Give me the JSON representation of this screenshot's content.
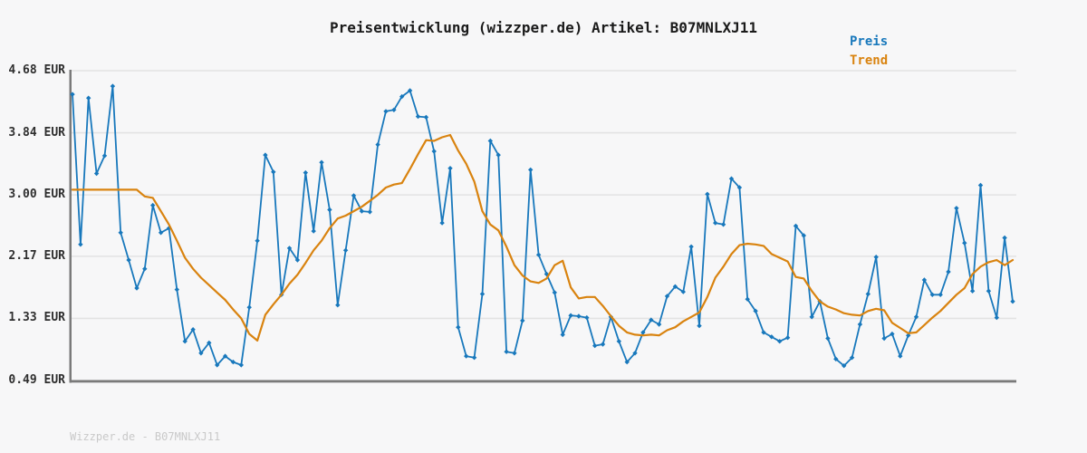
{
  "title": "Preisentwicklung (wizzper.de) Artikel: B07MNLXJ11",
  "watermark": "Wizzper.de - B07MNLXJ11",
  "legend": {
    "preis": "Preis",
    "trend": "Trend"
  },
  "colors": {
    "preis": "#1878bc",
    "trend": "#d9830f",
    "grid": "#e3e3e3",
    "spine": "#7a7a7a",
    "background": "#f7f7f8",
    "title_text": "#1a1a1a",
    "tick_text": "#2e2e2e",
    "watermark_text": "#c9c9c9"
  },
  "chart_data": {
    "type": "line",
    "title": "Preisentwicklung (wizzper.de) Artikel: B07MNLXJ11",
    "xlabel": "",
    "ylabel": "EUR",
    "ylim": [
      0.49,
      4.68
    ],
    "grid": true,
    "legend_position": "top-right above plot",
    "x_tick_labels": [],
    "y_ticks": [
      {
        "label": "4.68 EUR",
        "value": 4.68
      },
      {
        "label": "3.84 EUR",
        "value": 3.84
      },
      {
        "label": "3.00 EUR",
        "value": 3.0
      },
      {
        "label": "2.17 EUR",
        "value": 2.17
      },
      {
        "label": "1.33 EUR",
        "value": 1.33
      },
      {
        "label": "0.49 EUR",
        "value": 0.49
      }
    ],
    "series": [
      {
        "name": "Preis",
        "color": "#1878bc",
        "marker": "diamond",
        "values": [
          4.36,
          2.33,
          4.31,
          3.29,
          3.53,
          4.47,
          2.49,
          2.12,
          1.74,
          2.0,
          2.86,
          2.49,
          2.55,
          1.72,
          1.02,
          1.18,
          0.86,
          1.0,
          0.7,
          0.82,
          0.74,
          0.7,
          1.48,
          2.38,
          3.54,
          3.31,
          1.65,
          2.28,
          2.12,
          3.3,
          2.51,
          3.44,
          2.8,
          1.51,
          2.25,
          2.99,
          2.78,
          2.77,
          3.68,
          4.13,
          4.15,
          4.33,
          4.41,
          4.06,
          4.05,
          3.59,
          2.62,
          3.36,
          1.21,
          0.82,
          0.8,
          1.66,
          3.73,
          3.54,
          0.88,
          0.86,
          1.3,
          3.34,
          2.19,
          1.93,
          1.68,
          1.11,
          1.37,
          1.36,
          1.34,
          0.96,
          0.98,
          1.35,
          1.02,
          0.74,
          0.86,
          1.14,
          1.31,
          1.25,
          1.63,
          1.76,
          1.69,
          2.3,
          1.23,
          3.01,
          2.62,
          2.6,
          3.22,
          3.1,
          1.59,
          1.43,
          1.14,
          1.08,
          1.02,
          1.07,
          2.58,
          2.45,
          1.35,
          1.56,
          1.06,
          0.78,
          0.69,
          0.8,
          1.25,
          1.66,
          2.16,
          1.06,
          1.12,
          0.82,
          1.1,
          1.35,
          1.85,
          1.65,
          1.65,
          1.96,
          2.82,
          2.35,
          1.7,
          3.13,
          1.7,
          1.34,
          2.42,
          1.56
        ]
      },
      {
        "name": "Trend",
        "color": "#d9830f",
        "marker": "none",
        "values": [
          3.07,
          3.07,
          3.07,
          3.07,
          3.07,
          3.07,
          3.07,
          3.07,
          3.07,
          2.98,
          2.96,
          2.78,
          2.6,
          2.38,
          2.15,
          2.0,
          1.88,
          1.78,
          1.68,
          1.58,
          1.45,
          1.33,
          1.12,
          1.03,
          1.38,
          1.52,
          1.65,
          1.8,
          1.92,
          2.08,
          2.25,
          2.38,
          2.55,
          2.68,
          2.72,
          2.78,
          2.84,
          2.92,
          3.0,
          3.1,
          3.14,
          3.16,
          3.35,
          3.55,
          3.74,
          3.73,
          3.78,
          3.81,
          3.6,
          3.42,
          3.18,
          2.78,
          2.6,
          2.52,
          2.3,
          2.05,
          1.91,
          1.83,
          1.81,
          1.87,
          2.05,
          2.11,
          1.75,
          1.6,
          1.62,
          1.62,
          1.5,
          1.36,
          1.23,
          1.14,
          1.11,
          1.1,
          1.11,
          1.1,
          1.17,
          1.21,
          1.29,
          1.35,
          1.41,
          1.62,
          1.88,
          2.03,
          2.2,
          2.32,
          2.34,
          2.33,
          2.31,
          2.2,
          2.15,
          2.1,
          1.89,
          1.87,
          1.7,
          1.56,
          1.49,
          1.45,
          1.4,
          1.38,
          1.37,
          1.43,
          1.46,
          1.44,
          1.27,
          1.2,
          1.13,
          1.14,
          1.24,
          1.34,
          1.43,
          1.54,
          1.65,
          1.74,
          1.93,
          2.03,
          2.09,
          2.12,
          2.05,
          2.12
        ]
      }
    ]
  }
}
